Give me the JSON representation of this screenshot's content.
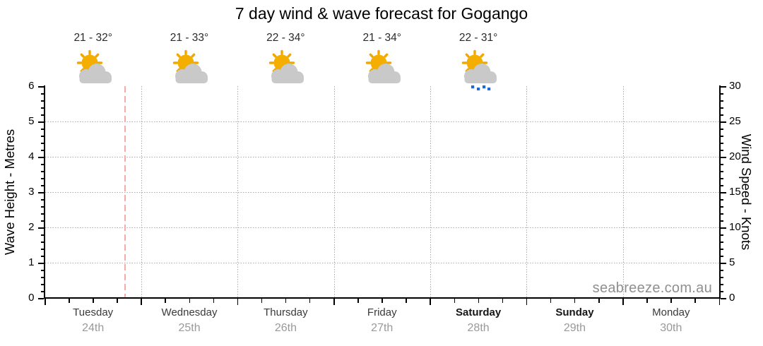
{
  "title": "7 day wind & wave forecast for Gogango",
  "watermark": "seabreeze.com.au",
  "axes": {
    "left_label": "Wave Height - Metres",
    "right_label": "Wind Speed - Knots"
  },
  "days": [
    {
      "name": "Tuesday",
      "date": "24th",
      "temp_range": "21 - 32°",
      "condition": "partly-cloudy",
      "weekend": false
    },
    {
      "name": "Wednesday",
      "date": "25th",
      "temp_range": "21 - 33°",
      "condition": "partly-cloudy",
      "weekend": false
    },
    {
      "name": "Thursday",
      "date": "26th",
      "temp_range": "22 - 34°",
      "condition": "partly-cloudy",
      "weekend": false
    },
    {
      "name": "Friday",
      "date": "27th",
      "temp_range": "21 - 34°",
      "condition": "partly-cloudy",
      "weekend": false
    },
    {
      "name": "Saturday",
      "date": "28th",
      "temp_range": "22 - 31°",
      "condition": "partly-cloudy-rain",
      "weekend": true
    },
    {
      "name": "Sunday",
      "date": "29th",
      "temp_range": null,
      "condition": null,
      "weekend": true
    },
    {
      "name": "Monday",
      "date": "30th",
      "temp_range": null,
      "condition": null,
      "weekend": false
    }
  ],
  "chart_data": {
    "type": "line",
    "title": "7 day wind & wave forecast for Gogango",
    "x_categories": [
      "Tuesday 24th",
      "Wednesday 25th",
      "Thursday 26th",
      "Friday 27th",
      "Saturday 28th",
      "Sunday 29th",
      "Monday 30th"
    ],
    "x_minor_ticks_per_day": 4,
    "y_axis_left": {
      "label": "Wave Height - Metres",
      "range": [
        0,
        6
      ],
      "major_tick": 1,
      "minor_tick": 0.2,
      "gridlines": [
        1,
        2,
        3,
        4,
        5
      ]
    },
    "y_axis_right": {
      "label": "Wind Speed - Knots",
      "range": [
        0,
        30
      ],
      "major_tick": 5,
      "minor_tick": 1
    },
    "series": [],
    "grid": true,
    "legend": "none",
    "annotations": {
      "temps_by_day": [
        "21 - 32°",
        "21 - 33°",
        "22 - 34°",
        "21 - 34°",
        "22 - 31°",
        null,
        null
      ],
      "conditions_by_day": [
        "partly-cloudy",
        "partly-cloudy",
        "partly-cloudy",
        "partly-cloudy",
        "partly-cloudy-rain",
        null,
        null
      ],
      "now_line": {
        "day_index": 0,
        "fraction_of_day": 0.83
      }
    }
  },
  "colors": {
    "sun": "#f3ae00",
    "sun_ray": "#f0a800",
    "cloud": "#c9c9c9",
    "rain": "#1e66dd",
    "now_line": "#f5abab",
    "grid": "#a9a9a9",
    "axis": "#000000",
    "temp_text": "#2a2a2a",
    "day_text": "#3a3a3a",
    "date_text": "#999999",
    "watermark_text": "#8f8f8f"
  }
}
